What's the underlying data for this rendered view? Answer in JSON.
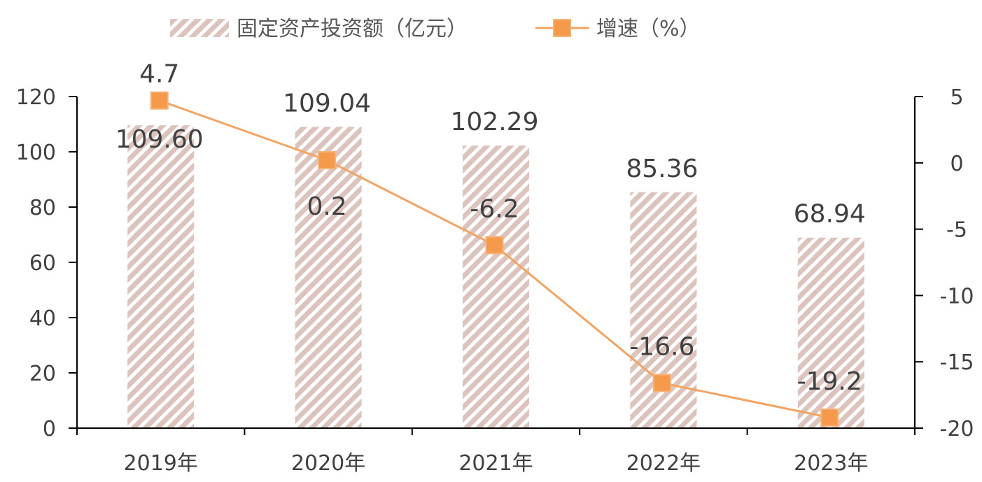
{
  "chart_data": {
    "type": "bar+line",
    "categories": [
      "2019年",
      "2020年",
      "2021年",
      "2022年",
      "2023年"
    ],
    "series": [
      {
        "name": "固定资产投资额（亿元）",
        "type": "bar",
        "axis": "left",
        "values": [
          109.6,
          109.04,
          102.29,
          85.36,
          68.94
        ],
        "labels": [
          "109.60",
          "109.04",
          "102.29",
          "85.36",
          "68.94"
        ],
        "color": "#d9b8b0",
        "pattern": "diagonal-stripes"
      },
      {
        "name": "增速（%）",
        "type": "line",
        "axis": "right",
        "values": [
          4.7,
          0.2,
          -6.2,
          -16.6,
          -19.2
        ],
        "labels": [
          "4.7",
          "0.2",
          "-6.2",
          "-16.6",
          "-19.2"
        ],
        "color": "#f4a460",
        "marker": "square"
      }
    ],
    "y_left": {
      "min": 0,
      "max": 120,
      "ticks": [
        0,
        20,
        40,
        60,
        80,
        100,
        120
      ]
    },
    "y_right": {
      "min": -20,
      "max": 5,
      "ticks": [
        5,
        0,
        -5,
        -10,
        -15,
        -20
      ]
    },
    "legend": "top-center",
    "grid": false
  }
}
